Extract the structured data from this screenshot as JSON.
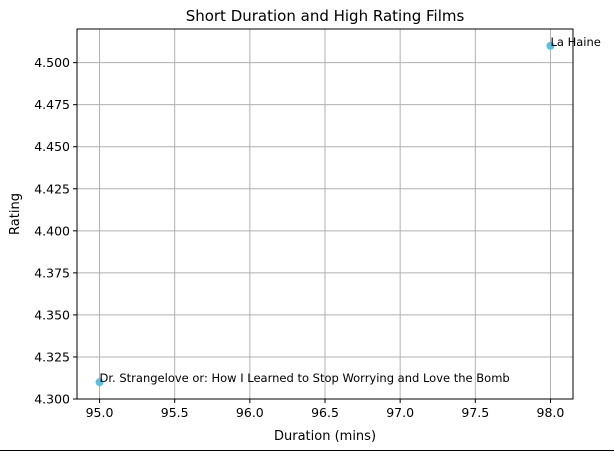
{
  "chart_data": {
    "type": "scatter",
    "title": "Short Duration and High Rating Films",
    "xlabel": "Duration (mins)",
    "ylabel": "Rating",
    "xlim": [
      94.85,
      98.15
    ],
    "ylim": [
      4.3,
      4.52
    ],
    "xticks": [
      95.0,
      95.5,
      96.0,
      96.5,
      97.0,
      97.5,
      98.0
    ],
    "xtick_labels": [
      "95.0",
      "95.5",
      "96.0",
      "96.5",
      "97.0",
      "97.5",
      "98.0"
    ],
    "yticks": [
      4.3,
      4.325,
      4.35,
      4.375,
      4.4,
      4.425,
      4.45,
      4.475,
      4.5
    ],
    "ytick_labels": [
      "4.300",
      "4.325",
      "4.350",
      "4.375",
      "4.400",
      "4.425",
      "4.450",
      "4.475",
      "4.500"
    ],
    "grid": true,
    "marker_color": "#5bc0de",
    "points": [
      {
        "x": 95.0,
        "y": 4.31,
        "label": "Dr. Strangelove or: How I Learned to Stop Worrying and Love the Bomb"
      },
      {
        "x": 98.0,
        "y": 4.51,
        "label": "La Haine"
      }
    ]
  }
}
